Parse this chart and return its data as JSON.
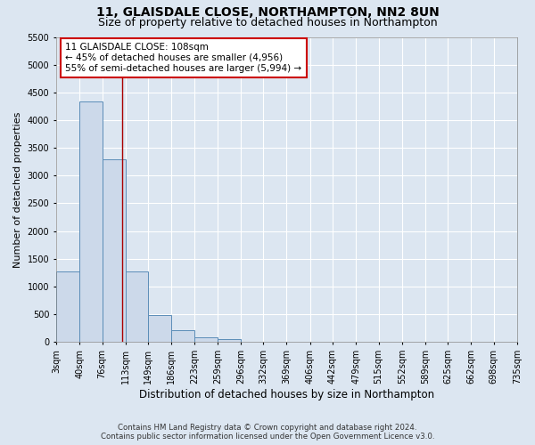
{
  "title": "11, GLAISDALE CLOSE, NORTHAMPTON, NN2 8UN",
  "subtitle": "Size of property relative to detached houses in Northampton",
  "xlabel": "Distribution of detached houses by size in Northampton",
  "ylabel": "Number of detached properties",
  "footer_line1": "Contains HM Land Registry data © Crown copyright and database right 2024.",
  "footer_line2": "Contains public sector information licensed under the Open Government Licence v3.0.",
  "bar_edges": [
    3,
    40,
    76,
    113,
    149,
    186,
    223,
    259,
    296,
    332,
    369,
    406,
    442,
    479,
    515,
    552,
    589,
    625,
    662,
    698,
    735
  ],
  "bar_heights": [
    1270,
    4330,
    3300,
    1280,
    480,
    210,
    80,
    50,
    0,
    0,
    0,
    0,
    0,
    0,
    0,
    0,
    0,
    0,
    0,
    0
  ],
  "bar_color": "#ccd9ea",
  "bar_edge_color": "#5b8db8",
  "tick_labels": [
    "3sqm",
    "40sqm",
    "76sqm",
    "113sqm",
    "149sqm",
    "186sqm",
    "223sqm",
    "259sqm",
    "296sqm",
    "332sqm",
    "369sqm",
    "406sqm",
    "442sqm",
    "479sqm",
    "515sqm",
    "552sqm",
    "589sqm",
    "625sqm",
    "662sqm",
    "698sqm",
    "735sqm"
  ],
  "ylim": [
    0,
    5500
  ],
  "yticks": [
    0,
    500,
    1000,
    1500,
    2000,
    2500,
    3000,
    3500,
    4000,
    4500,
    5000,
    5500
  ],
  "property_size": 108,
  "vline_color": "#aa0000",
  "annotation_text": "11 GLAISDALE CLOSE: 108sqm\n← 45% of detached houses are smaller (4,956)\n55% of semi-detached houses are larger (5,994) →",
  "annotation_box_color": "#ffffff",
  "annotation_box_edge_color": "#cc0000",
  "bg_color": "#dce6f1",
  "plot_bg_color": "#dce6f1",
  "grid_color": "#ffffff",
  "title_fontsize": 10,
  "subtitle_fontsize": 9,
  "axis_label_fontsize": 8.5,
  "tick_fontsize": 7,
  "annotation_fontsize": 7.5,
  "ylabel_fontsize": 8
}
